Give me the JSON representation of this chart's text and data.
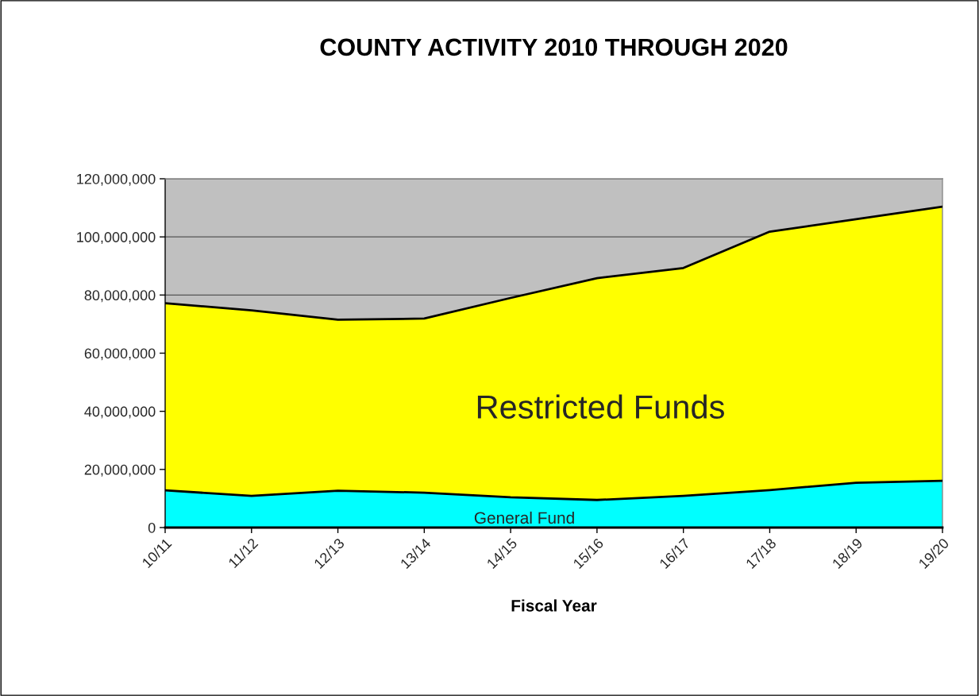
{
  "chart_data": {
    "type": "area",
    "title": "COUNTY ACTIVITY 2010 THROUGH 2020",
    "xlabel": "Fiscal Year",
    "categories": [
      "10/11",
      "11/12",
      "12/13",
      "13/14",
      "14/15",
      "15/16",
      "16/17",
      "17/18",
      "18/19",
      "19/20"
    ],
    "stacked": true,
    "series": [
      {
        "name": "General Fund",
        "color": "#00ffff",
        "values": [
          12800000,
          10900000,
          12700000,
          12000000,
          10400000,
          9500000,
          10900000,
          12900000,
          15400000,
          16100000
        ]
      },
      {
        "name": "Restricted Funds",
        "color": "#ffff00",
        "values": [
          64400000,
          63800000,
          58800000,
          59900000,
          68600000,
          76300000,
          78400000,
          88900000,
          90700000,
          94300000
        ]
      }
    ],
    "ylim": [
      0,
      120000000
    ],
    "yticks": [
      {
        "value": 0,
        "label": "0"
      },
      {
        "value": 20000000,
        "label": "20,000,000"
      },
      {
        "value": 40000000,
        "label": "40,000,000"
      },
      {
        "value": 60000000,
        "label": "60,000,000"
      },
      {
        "value": 80000000,
        "label": "80,000,000"
      },
      {
        "value": 100000000,
        "label": "100,000,000"
      },
      {
        "value": 120000000,
        "label": "120,000,000"
      }
    ],
    "grid": "y",
    "legend": false
  }
}
